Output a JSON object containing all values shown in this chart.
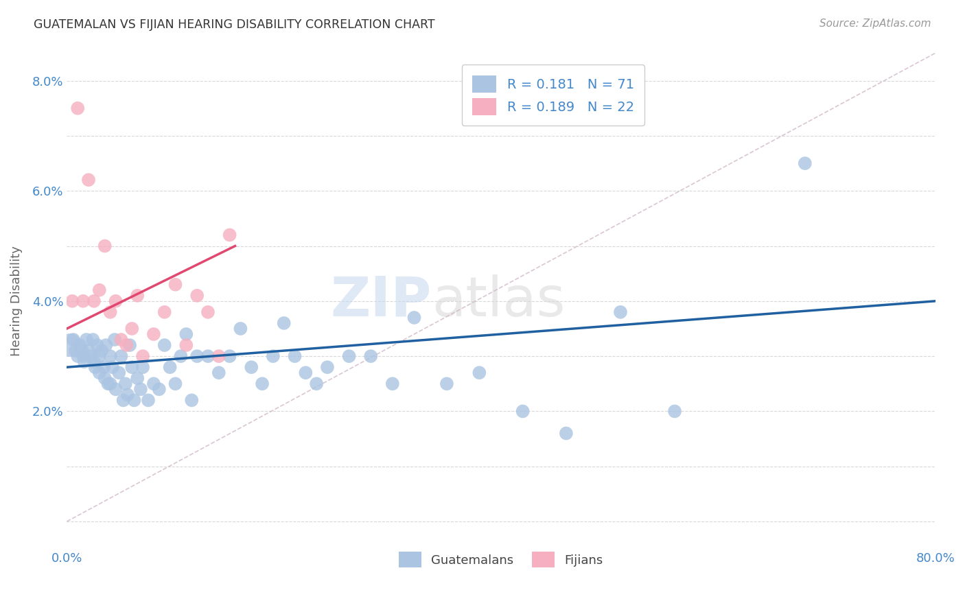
{
  "title": "GUATEMALAN VS FIJIAN HEARING DISABILITY CORRELATION CHART",
  "source": "Source: ZipAtlas.com",
  "ylabel": "Hearing Disability",
  "xlim": [
    0,
    0.8
  ],
  "ylim": [
    -0.005,
    0.085
  ],
  "blue_color": "#aac4e2",
  "pink_color": "#f5afc0",
  "blue_line_color": "#2060a0",
  "pink_line_color": "#e04870",
  "dashed_line_color": "#d0b8c8",
  "background_color": "#ffffff",
  "grid_color": "#d8d8d8",
  "watermark_zip": "ZIP",
  "watermark_atlas": "atlas",
  "axis_label_color": "#4488cc",
  "guatemalan_x": [
    0.003,
    0.006,
    0.008,
    0.01,
    0.012,
    0.014,
    0.015,
    0.016,
    0.018,
    0.02,
    0.022,
    0.024,
    0.025,
    0.026,
    0.028,
    0.03,
    0.03,
    0.032,
    0.034,
    0.035,
    0.036,
    0.038,
    0.04,
    0.04,
    0.042,
    0.044,
    0.045,
    0.048,
    0.05,
    0.052,
    0.054,
    0.056,
    0.058,
    0.06,
    0.062,
    0.065,
    0.068,
    0.07,
    0.075,
    0.08,
    0.085,
    0.09,
    0.095,
    0.1,
    0.105,
    0.11,
    0.115,
    0.12,
    0.13,
    0.14,
    0.15,
    0.16,
    0.17,
    0.18,
    0.19,
    0.2,
    0.21,
    0.22,
    0.23,
    0.24,
    0.26,
    0.28,
    0.3,
    0.32,
    0.35,
    0.38,
    0.42,
    0.46,
    0.51,
    0.56,
    0.68
  ],
  "guatemalan_y": [
    0.032,
    0.033,
    0.031,
    0.03,
    0.032,
    0.031,
    0.03,
    0.029,
    0.033,
    0.031,
    0.03,
    0.033,
    0.029,
    0.028,
    0.032,
    0.03,
    0.027,
    0.031,
    0.028,
    0.026,
    0.032,
    0.025,
    0.03,
    0.025,
    0.028,
    0.033,
    0.024,
    0.027,
    0.03,
    0.022,
    0.025,
    0.023,
    0.032,
    0.028,
    0.022,
    0.026,
    0.024,
    0.028,
    0.022,
    0.025,
    0.024,
    0.032,
    0.028,
    0.025,
    0.03,
    0.034,
    0.022,
    0.03,
    0.03,
    0.027,
    0.03,
    0.035,
    0.028,
    0.025,
    0.03,
    0.036,
    0.03,
    0.027,
    0.025,
    0.028,
    0.03,
    0.03,
    0.025,
    0.037,
    0.025,
    0.027,
    0.02,
    0.016,
    0.038,
    0.02,
    0.065
  ],
  "guatemalan_sizes": [
    600,
    200,
    200,
    200,
    200,
    200,
    200,
    200,
    200,
    200,
    200,
    200,
    200,
    200,
    200,
    200,
    200,
    200,
    200,
    200,
    200,
    200,
    200,
    200,
    200,
    200,
    200,
    200,
    200,
    200,
    200,
    200,
    200,
    200,
    200,
    200,
    200,
    200,
    200,
    200,
    200,
    200,
    200,
    200,
    200,
    200,
    200,
    200,
    200,
    200,
    200,
    200,
    200,
    200,
    200,
    200,
    200,
    200,
    200,
    200,
    200,
    200,
    200,
    200,
    200,
    200,
    200,
    200,
    200,
    200,
    200
  ],
  "fijian_x": [
    0.005,
    0.01,
    0.015,
    0.02,
    0.025,
    0.03,
    0.035,
    0.04,
    0.045,
    0.05,
    0.055,
    0.06,
    0.065,
    0.07,
    0.08,
    0.09,
    0.1,
    0.11,
    0.12,
    0.13,
    0.14,
    0.15
  ],
  "fijian_y": [
    0.04,
    0.075,
    0.04,
    0.062,
    0.04,
    0.042,
    0.05,
    0.038,
    0.04,
    0.033,
    0.032,
    0.035,
    0.041,
    0.03,
    0.034,
    0.038,
    0.043,
    0.032,
    0.041,
    0.038,
    0.03,
    0.052
  ],
  "blue_line_x": [
    0.0,
    0.8
  ],
  "blue_line_y": [
    0.028,
    0.04
  ],
  "pink_line_x": [
    0.0,
    0.155
  ],
  "pink_line_y": [
    0.035,
    0.05
  ]
}
